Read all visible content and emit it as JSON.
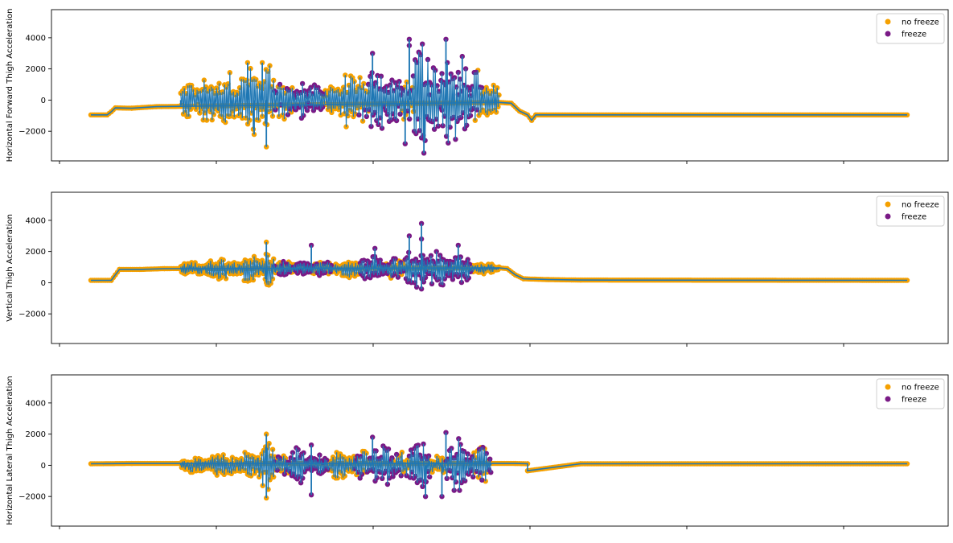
{
  "chart_data": [
    {
      "type": "scatter",
      "title": "",
      "xlabel": "",
      "ylabel": "Horizontal Forward Thigh Acceleration",
      "ylim": [
        -3900,
        5800
      ],
      "yticks": [
        -2000,
        0,
        2000,
        4000
      ],
      "ytick_labels": [
        "−2000",
        "0",
        "2000",
        "4000"
      ],
      "grid": false,
      "legend_position": "top-right",
      "baseline_start": -950,
      "baseline_end": -950,
      "active_center": 0,
      "bursts": [
        {
          "x0": 0.11,
          "x1": 0.13,
          "class": "nf",
          "amp": 1200
        },
        {
          "x0": 0.13,
          "x1": 0.155,
          "class": "nf",
          "amp": 1500
        },
        {
          "x0": 0.155,
          "x1": 0.18,
          "class": "nf",
          "amp": 1900
        },
        {
          "x0": 0.18,
          "x1": 0.21,
          "class": "nf",
          "amp": 2100
        },
        {
          "x0": 0.21,
          "x1": 0.225,
          "class": "nf",
          "amp": 2400
        },
        {
          "x0": 0.225,
          "x1": 0.25,
          "class": "mix",
          "amp": 1300
        },
        {
          "x0": 0.25,
          "x1": 0.265,
          "class": "f",
          "amp": 1400
        },
        {
          "x0": 0.265,
          "x1": 0.285,
          "class": "f",
          "amp": 1000
        },
        {
          "x0": 0.285,
          "x1": 0.305,
          "class": "nf",
          "amp": 1100
        },
        {
          "x0": 0.305,
          "x1": 0.325,
          "class": "nf",
          "amp": 1800
        },
        {
          "x0": 0.325,
          "x1": 0.34,
          "class": "mix",
          "amp": 1700
        },
        {
          "x0": 0.34,
          "x1": 0.36,
          "class": "f",
          "amp": 2600
        },
        {
          "x0": 0.36,
          "x1": 0.38,
          "class": "f",
          "amp": 1800
        },
        {
          "x0": 0.38,
          "x1": 0.395,
          "class": "mix",
          "amp": 1500
        },
        {
          "x0": 0.395,
          "x1": 0.415,
          "class": "f",
          "amp": 3900
        },
        {
          "x0": 0.415,
          "x1": 0.43,
          "class": "f",
          "amp": 2300
        },
        {
          "x0": 0.43,
          "x1": 0.45,
          "class": "f",
          "amp": 3800
        },
        {
          "x0": 0.45,
          "x1": 0.465,
          "class": "f",
          "amp": 2400
        },
        {
          "x0": 0.465,
          "x1": 0.48,
          "class": "mix",
          "amp": 2100
        },
        {
          "x0": 0.48,
          "x1": 0.5,
          "class": "nf",
          "amp": 1200
        }
      ],
      "points": [
        {
          "x": 0.0,
          "y": -950,
          "class": "nf"
        },
        {
          "x": 0.02,
          "y": -950,
          "class": "nf"
        },
        {
          "x": 0.025,
          "y": -750,
          "class": "nf"
        },
        {
          "x": 0.03,
          "y": -500,
          "class": "nf"
        },
        {
          "x": 0.05,
          "y": -520,
          "class": "nf"
        },
        {
          "x": 0.08,
          "y": -420,
          "class": "nf"
        },
        {
          "x": 0.11,
          "y": -350,
          "class": "nf"
        },
        {
          "x": 0.5,
          "y": -150,
          "class": "nf"
        },
        {
          "x": 0.515,
          "y": -200,
          "class": "nf"
        },
        {
          "x": 0.525,
          "y": -700,
          "class": "nf"
        },
        {
          "x": 0.535,
          "y": -950,
          "class": "nf"
        },
        {
          "x": 0.54,
          "y": -1300,
          "class": "nf"
        },
        {
          "x": 0.545,
          "y": -950,
          "class": "nf"
        },
        {
          "x": 1.0,
          "y": -950,
          "class": "nf"
        },
        {
          "x": 0.192,
          "y": 2400,
          "class": "nf"
        },
        {
          "x": 0.215,
          "y": -3000,
          "class": "nf"
        },
        {
          "x": 0.21,
          "y": 2400,
          "class": "nf"
        },
        {
          "x": 0.2,
          "y": -2200,
          "class": "nf"
        },
        {
          "x": 0.39,
          "y": 3900,
          "class": "f"
        },
        {
          "x": 0.435,
          "y": 3900,
          "class": "f"
        },
        {
          "x": 0.39,
          "y": 3500,
          "class": "f"
        },
        {
          "x": 0.408,
          "y": -3400,
          "class": "f"
        },
        {
          "x": 0.385,
          "y": -2800,
          "class": "f"
        },
        {
          "x": 0.345,
          "y": 3000,
          "class": "f"
        },
        {
          "x": 0.455,
          "y": 2800,
          "class": "f"
        }
      ]
    },
    {
      "type": "scatter",
      "title": "",
      "xlabel": "",
      "ylabel": "Vertical Thigh Acceleration",
      "ylim": [
        -3900,
        5800
      ],
      "yticks": [
        -2000,
        0,
        2000,
        4000
      ],
      "ytick_labels": [
        "−2000",
        "0",
        "2000",
        "4000"
      ],
      "grid": false,
      "legend_position": "top-right",
      "baseline_start": 150,
      "baseline_end": 150,
      "active_center": 900,
      "bursts": [
        {
          "x0": 0.11,
          "x1": 0.14,
          "class": "nf",
          "amp": 450
        },
        {
          "x0": 0.14,
          "x1": 0.18,
          "class": "nf",
          "amp": 700
        },
        {
          "x0": 0.18,
          "x1": 0.21,
          "class": "nf",
          "amp": 900
        },
        {
          "x0": 0.21,
          "x1": 0.225,
          "class": "nf",
          "amp": 1200
        },
        {
          "x0": 0.225,
          "x1": 0.25,
          "class": "mix",
          "amp": 500
        },
        {
          "x0": 0.25,
          "x1": 0.27,
          "class": "f",
          "amp": 400
        },
        {
          "x0": 0.27,
          "x1": 0.3,
          "class": "mix",
          "amp": 500
        },
        {
          "x0": 0.3,
          "x1": 0.33,
          "class": "nf",
          "amp": 600
        },
        {
          "x0": 0.33,
          "x1": 0.36,
          "class": "f",
          "amp": 900
        },
        {
          "x0": 0.36,
          "x1": 0.385,
          "class": "mix",
          "amp": 700
        },
        {
          "x0": 0.385,
          "x1": 0.41,
          "class": "f",
          "amp": 1500
        },
        {
          "x0": 0.41,
          "x1": 0.44,
          "class": "f",
          "amp": 1200
        },
        {
          "x0": 0.44,
          "x1": 0.465,
          "class": "f",
          "amp": 1000
        },
        {
          "x0": 0.465,
          "x1": 0.5,
          "class": "nf",
          "amp": 350
        }
      ],
      "points": [
        {
          "x": 0.0,
          "y": 150,
          "class": "nf"
        },
        {
          "x": 0.025,
          "y": 150,
          "class": "nf"
        },
        {
          "x": 0.03,
          "y": 500,
          "class": "nf"
        },
        {
          "x": 0.035,
          "y": 850,
          "class": "nf"
        },
        {
          "x": 0.06,
          "y": 850,
          "class": "nf"
        },
        {
          "x": 0.09,
          "y": 900,
          "class": "nf"
        },
        {
          "x": 0.11,
          "y": 950,
          "class": "nf"
        },
        {
          "x": 0.5,
          "y": 950,
          "class": "nf"
        },
        {
          "x": 0.51,
          "y": 900,
          "class": "nf"
        },
        {
          "x": 0.52,
          "y": 500,
          "class": "nf"
        },
        {
          "x": 0.53,
          "y": 250,
          "class": "nf"
        },
        {
          "x": 0.56,
          "y": 200,
          "class": "nf"
        },
        {
          "x": 0.6,
          "y": 170,
          "class": "nf"
        },
        {
          "x": 1.0,
          "y": 150,
          "class": "nf"
        },
        {
          "x": 0.215,
          "y": 2600,
          "class": "nf"
        },
        {
          "x": 0.215,
          "y": 0,
          "class": "nf"
        },
        {
          "x": 0.27,
          "y": 2400,
          "class": "f"
        },
        {
          "x": 0.39,
          "y": 3000,
          "class": "f"
        },
        {
          "x": 0.405,
          "y": 3800,
          "class": "f"
        },
        {
          "x": 0.405,
          "y": 2800,
          "class": "f"
        },
        {
          "x": 0.405,
          "y": -400,
          "class": "f"
        },
        {
          "x": 0.45,
          "y": 2400,
          "class": "f"
        },
        {
          "x": 0.348,
          "y": 2200,
          "class": "f"
        }
      ]
    },
    {
      "type": "scatter",
      "title": "",
      "xlabel": "",
      "ylabel": "Horizontal Lateral Thigh Acceleration",
      "ylim": [
        -3900,
        5800
      ],
      "yticks": [
        -2000,
        0,
        2000,
        4000
      ],
      "ytick_labels": [
        "−2000",
        "0",
        "2000",
        "4000"
      ],
      "grid": false,
      "legend_position": "top-right",
      "baseline_start": 100,
      "baseline_end": 100,
      "active_center": 0,
      "bursts": [
        {
          "x0": 0.11,
          "x1": 0.14,
          "class": "nf",
          "amp": 500
        },
        {
          "x0": 0.14,
          "x1": 0.18,
          "class": "nf",
          "amp": 700
        },
        {
          "x0": 0.18,
          "x1": 0.205,
          "class": "nf",
          "amp": 900
        },
        {
          "x0": 0.205,
          "x1": 0.225,
          "class": "nf",
          "amp": 1700
        },
        {
          "x0": 0.225,
          "x1": 0.245,
          "class": "mix",
          "amp": 700
        },
        {
          "x0": 0.245,
          "x1": 0.265,
          "class": "f",
          "amp": 1300
        },
        {
          "x0": 0.265,
          "x1": 0.29,
          "class": "f",
          "amp": 700
        },
        {
          "x0": 0.29,
          "x1": 0.32,
          "class": "nf",
          "amp": 900
        },
        {
          "x0": 0.32,
          "x1": 0.345,
          "class": "mix",
          "amp": 1000
        },
        {
          "x0": 0.345,
          "x1": 0.37,
          "class": "f",
          "amp": 1500
        },
        {
          "x0": 0.37,
          "x1": 0.39,
          "class": "mix",
          "amp": 900
        },
        {
          "x0": 0.39,
          "x1": 0.415,
          "class": "f",
          "amp": 1600
        },
        {
          "x0": 0.415,
          "x1": 0.435,
          "class": "nf",
          "amp": 700
        },
        {
          "x0": 0.435,
          "x1": 0.465,
          "class": "f",
          "amp": 1800
        },
        {
          "x0": 0.465,
          "x1": 0.49,
          "class": "mix",
          "amp": 1200
        }
      ],
      "points": [
        {
          "x": 0.0,
          "y": 100,
          "class": "nf"
        },
        {
          "x": 0.05,
          "y": 120,
          "class": "nf"
        },
        {
          "x": 0.11,
          "y": 150,
          "class": "nf"
        },
        {
          "x": 0.49,
          "y": 150,
          "class": "nf"
        },
        {
          "x": 0.52,
          "y": 120,
          "class": "nf"
        },
        {
          "x": 0.535,
          "y": 100,
          "class": "nf"
        },
        {
          "x": 0.535,
          "y": -350,
          "class": "nf"
        },
        {
          "x": 0.6,
          "y": 100,
          "class": "nf"
        },
        {
          "x": 1.0,
          "y": 100,
          "class": "nf"
        },
        {
          "x": 0.215,
          "y": 2000,
          "class": "nf"
        },
        {
          "x": 0.215,
          "y": -2100,
          "class": "nf"
        },
        {
          "x": 0.27,
          "y": 1300,
          "class": "f"
        },
        {
          "x": 0.27,
          "y": -1900,
          "class": "f"
        },
        {
          "x": 0.345,
          "y": 1800,
          "class": "f"
        },
        {
          "x": 0.41,
          "y": -2000,
          "class": "f"
        },
        {
          "x": 0.435,
          "y": 2100,
          "class": "f"
        },
        {
          "x": 0.43,
          "y": -2000,
          "class": "f"
        }
      ]
    }
  ],
  "legend": {
    "items": [
      {
        "label": "no freeze",
        "color": "#f5a000"
      },
      {
        "label": "freeze",
        "color": "#7a1a86"
      }
    ]
  },
  "colors": {
    "line": "#1f77b4",
    "no_freeze": "#f5a000",
    "freeze": "#7a1a86",
    "axis": "#000000"
  }
}
